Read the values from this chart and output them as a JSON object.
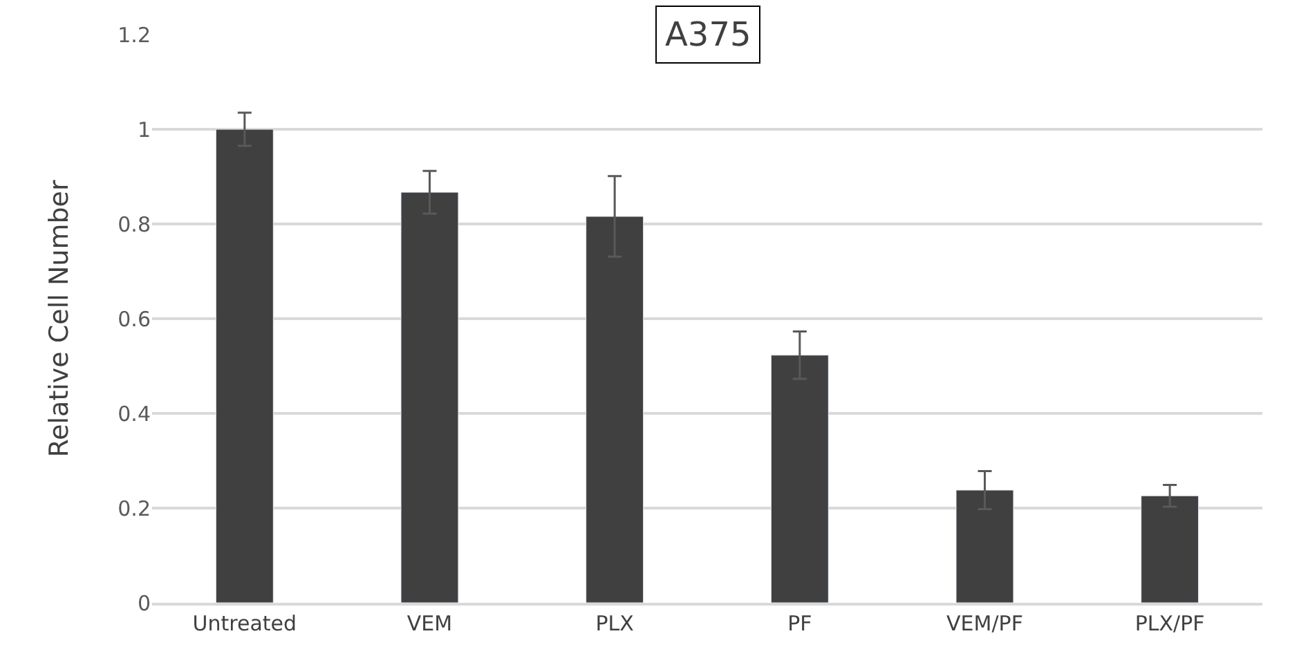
{
  "chart_data": {
    "type": "bar",
    "title": "A375",
    "ylabel": "Relative Cell Number",
    "categories": [
      "Untreated",
      "VEM",
      "PLX",
      "PF",
      "VEM/PF",
      "PLX/PF"
    ],
    "values": [
      1.0,
      0.867,
      0.816,
      0.523,
      0.238,
      0.226
    ],
    "errors": [
      0.035,
      0.045,
      0.085,
      0.05,
      0.04,
      0.023
    ],
    "color": "#404040",
    "ylim": [
      0,
      1.2
    ],
    "yticks": [
      0,
      0.2,
      0.4,
      0.6,
      0.8,
      1,
      1.2
    ],
    "grid": "y",
    "legend": false
  }
}
